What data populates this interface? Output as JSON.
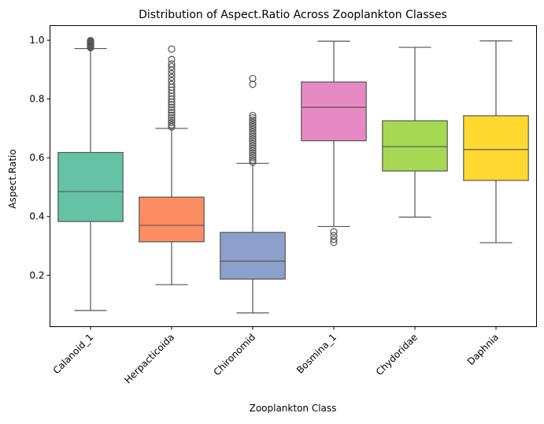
{
  "chart_data": {
    "type": "boxplot",
    "title": "Distribution of Aspect.Ratio Across Zooplankton Classes",
    "xlabel": "Zooplankton Class",
    "ylabel": "Aspect.Ratio",
    "ylim": [
      0.025,
      1.05
    ],
    "yticks": [
      0.2,
      0.4,
      0.6,
      0.8,
      1.0
    ],
    "ytick_labels": [
      "0.2",
      "0.4",
      "0.6",
      "0.8",
      "1.0"
    ],
    "grid": false,
    "legend": "none",
    "categories": [
      "Calanoid_1",
      "Herpacticoida",
      "Chironomid",
      "Bosmina_1",
      "Chydoridae",
      "Daphnia"
    ],
    "boxes": [
      {
        "category": "Calanoid_1",
        "color": "#66c2a5",
        "whisker_low": 0.08,
        "q1": 0.383,
        "median": 0.485,
        "q3": 0.618,
        "whisker_high": 0.972,
        "outliers": [
          0.975,
          0.978,
          0.981,
          0.984,
          0.987,
          0.99,
          0.993,
          0.996,
          0.999
        ]
      },
      {
        "category": "Herpacticoida",
        "color": "#fc8d62",
        "whisker_low": 0.168,
        "q1": 0.314,
        "median": 0.37,
        "q3": 0.466,
        "whisker_high": 0.7,
        "outliers": [
          0.705,
          0.712,
          0.72,
          0.728,
          0.736,
          0.745,
          0.754,
          0.763,
          0.772,
          0.781,
          0.79,
          0.8,
          0.81,
          0.82,
          0.83,
          0.84,
          0.85,
          0.862,
          0.874,
          0.886,
          0.898,
          0.91,
          0.92,
          0.935,
          0.97
        ]
      },
      {
        "category": "Chironomid",
        "color": "#8da0cb",
        "whisker_low": 0.072,
        "q1": 0.187,
        "median": 0.248,
        "q3": 0.346,
        "whisker_high": 0.581,
        "outliers": [
          0.585,
          0.592,
          0.6,
          0.608,
          0.616,
          0.624,
          0.632,
          0.64,
          0.648,
          0.656,
          0.664,
          0.672,
          0.68,
          0.688,
          0.696,
          0.704,
          0.712,
          0.72,
          0.728,
          0.736,
          0.744,
          0.85,
          0.87
        ]
      },
      {
        "category": "Bosmina_1",
        "color": "#e78ac3",
        "whisker_low": 0.366,
        "q1": 0.658,
        "median": 0.772,
        "q3": 0.858,
        "whisker_high": 0.997,
        "outliers": [
          0.312,
          0.322,
          0.335,
          0.348
        ]
      },
      {
        "category": "Chydoridae",
        "color": "#a6d854",
        "whisker_low": 0.398,
        "q1": 0.555,
        "median": 0.638,
        "q3": 0.726,
        "whisker_high": 0.976,
        "outliers": []
      },
      {
        "category": "Daphnia",
        "color": "#ffd92f",
        "whisker_low": 0.311,
        "q1": 0.523,
        "median": 0.628,
        "q3": 0.743,
        "whisker_high": 0.998,
        "outliers": []
      }
    ]
  }
}
